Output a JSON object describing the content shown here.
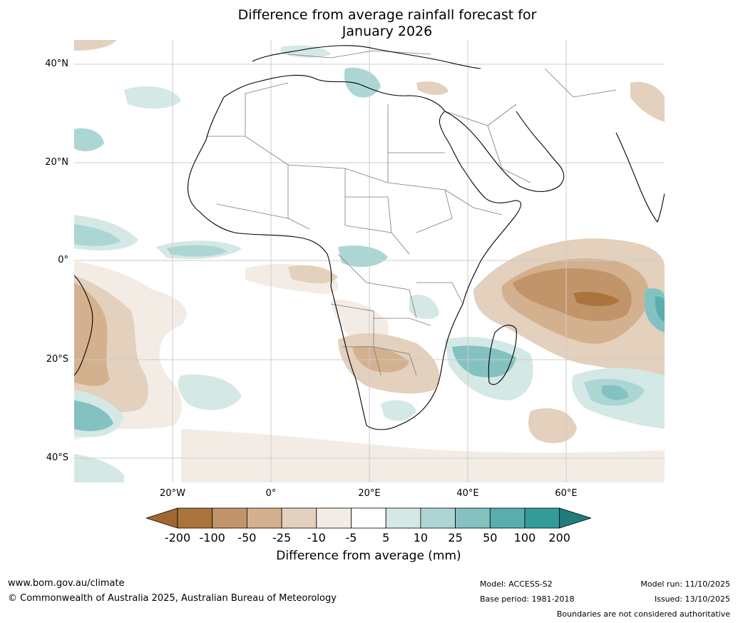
{
  "title": {
    "line1": "Difference from average rainfall forecast for",
    "line2": "January 2026"
  },
  "map": {
    "region": "Africa and surrounding oceans",
    "lat_labels": [
      "40°N",
      "20°N",
      "0°",
      "20°S",
      "40°S"
    ],
    "lon_labels": [
      "20°W",
      "0°",
      "20°E",
      "40°E",
      "60°E"
    ],
    "colors": {
      "ocean": "#ffffff",
      "coastline": "#000000",
      "borders": "#7a7a7a",
      "gridlines": "#cccccc"
    }
  },
  "legend": {
    "title": "Difference from average (mm)",
    "ticks": [
      "-200",
      "-100",
      "-50",
      "-25",
      "-10",
      "-5",
      "5",
      "10",
      "25",
      "50",
      "100",
      "200"
    ],
    "colors": [
      "#a06830",
      "#ab743c",
      "#c29469",
      "#d4b18e",
      "#e3d0bd",
      "#f2ece5",
      "#ffffff",
      "#d4e8e6",
      "#acd6d3",
      "#84c2c1",
      "#59adad",
      "#339b9a",
      "#207d7c"
    ]
  },
  "footer": {
    "website": "www.bom.gov.au/climate",
    "copyright": "© Commonwealth of Australia 2025, Australian Bureau of Meteorology",
    "model": "Model: ACCESS-S2",
    "base_period": "Base period: 1981-2018",
    "model_run": "Model run: 11/10/2025",
    "issued": "Issued: 13/10/2025",
    "disclaimer": "Boundaries are not considered authoritative"
  }
}
